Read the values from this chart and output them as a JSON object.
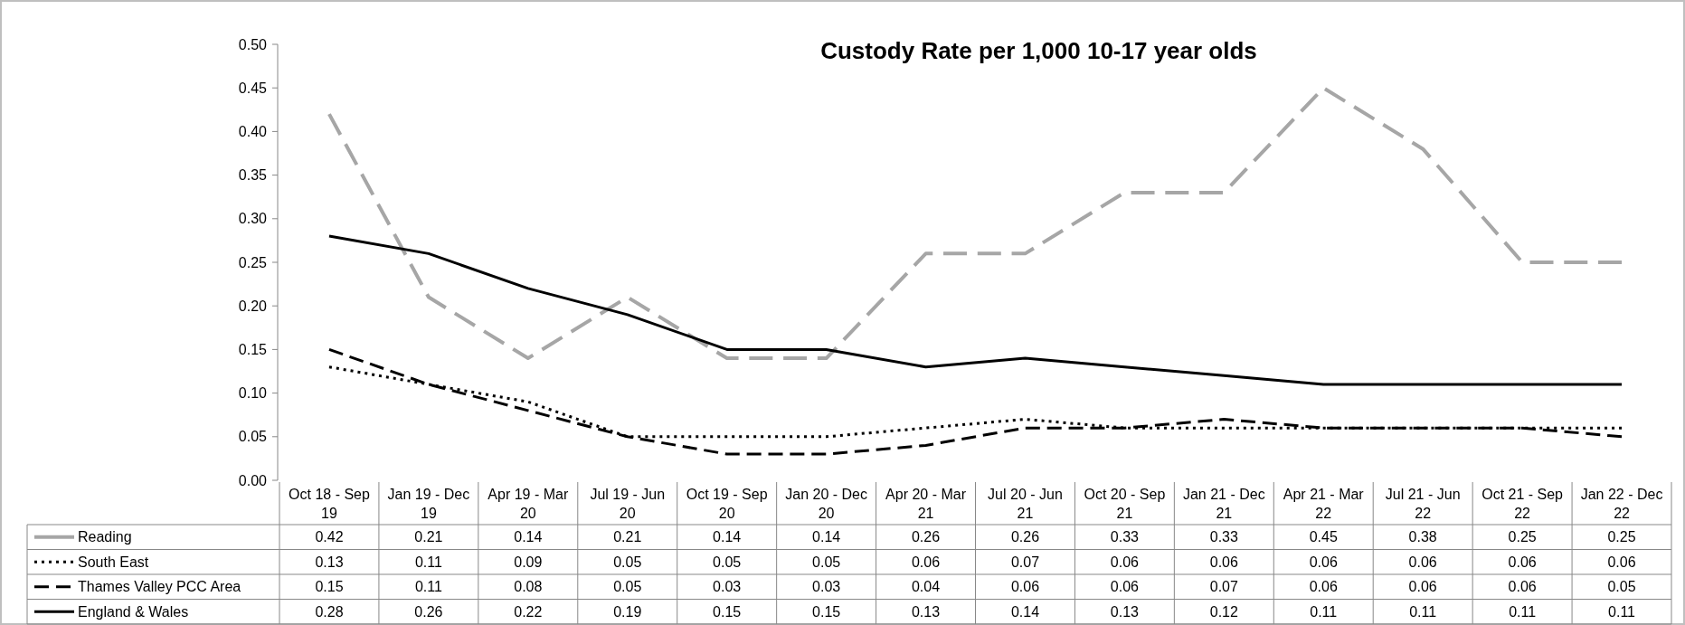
{
  "chart_data": {
    "type": "line",
    "title": "Custody Rate per 1,000 10-17 year olds",
    "categories": [
      "Oct 18 - Sep 19",
      "Jan 19 - Dec 19",
      "Apr 19 - Mar 20",
      "Jul 19 - Jun 20",
      "Oct 19 - Sep 20",
      "Jan 20 - Dec 20",
      "Apr 20 - Mar 21",
      "Jul 20 - Jun 21",
      "Oct 20 - Sep 21",
      "Jan 21 - Dec 21",
      "Apr 21 - Mar 22",
      "Jul 21 - Jun 22",
      "Oct 21 - Sep 22",
      "Jan 22 - Dec 22"
    ],
    "series": [
      {
        "name": "Reading",
        "color": "#a6a6a6",
        "line_style": "dashed",
        "values": [
          0.42,
          0.21,
          0.14,
          0.21,
          0.14,
          0.14,
          0.26,
          0.26,
          0.33,
          0.33,
          0.45,
          0.38,
          0.25,
          0.25
        ]
      },
      {
        "name": "South East",
        "color": "#000000",
        "line_style": "dotted",
        "values": [
          0.13,
          0.11,
          0.09,
          0.05,
          0.05,
          0.05,
          0.06,
          0.07,
          0.06,
          0.06,
          0.06,
          0.06,
          0.06,
          0.06
        ]
      },
      {
        "name": "Thames Valley PCC Area",
        "color": "#000000",
        "line_style": "dashed",
        "values": [
          0.15,
          0.11,
          0.08,
          0.05,
          0.03,
          0.03,
          0.04,
          0.06,
          0.06,
          0.07,
          0.06,
          0.06,
          0.06,
          0.05
        ]
      },
      {
        "name": "England & Wales",
        "color": "#000000",
        "line_style": "solid",
        "values": [
          0.28,
          0.26,
          0.22,
          0.19,
          0.15,
          0.15,
          0.13,
          0.14,
          0.13,
          0.12,
          0.11,
          0.11,
          0.11,
          0.11
        ]
      }
    ],
    "ylim": [
      0,
      0.5
    ],
    "yticks": [
      {
        "value": 0,
        "label": "0.00"
      },
      {
        "value": 0.05,
        "label": "0.05"
      },
      {
        "value": 0.1,
        "label": "0.10"
      },
      {
        "value": 0.15,
        "label": "0.15"
      },
      {
        "value": 0.2,
        "label": "0.20"
      },
      {
        "value": 0.25,
        "label": "0.25"
      },
      {
        "value": 0.3,
        "label": "0.30"
      },
      {
        "value": 0.35,
        "label": "0.35"
      },
      {
        "value": 0.4,
        "label": "0.40"
      },
      {
        "value": 0.45,
        "label": "0.45"
      },
      {
        "value": 0.5,
        "label": "0.50"
      }
    ],
    "grid": false,
    "legend": "bottom",
    "data_labels": true,
    "marker": "none"
  }
}
